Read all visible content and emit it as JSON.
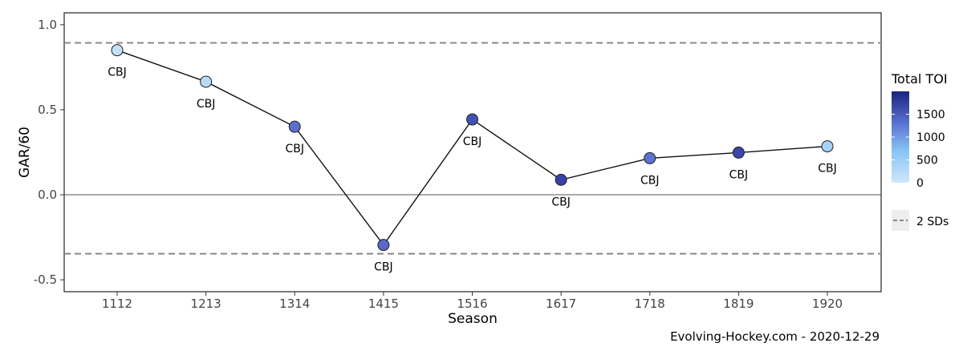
{
  "chart_data": {
    "type": "line",
    "xlabel": "Season",
    "ylabel": "GAR/60",
    "categories": [
      "1112",
      "1213",
      "1314",
      "1415",
      "1516",
      "1617",
      "1718",
      "1819",
      "1920"
    ],
    "ylim": [
      -0.57,
      1.07
    ],
    "yticks": [
      -0.5,
      0.0,
      0.5,
      1.0
    ],
    "ytick_labels": [
      "-0.5",
      "0.0",
      "0.5",
      "1.0"
    ],
    "zero_line": 0.0,
    "sd_lines": [
      0.893,
      -0.347
    ],
    "points": [
      {
        "season": "1112",
        "value": 0.85,
        "team": "CBJ",
        "toi": 150,
        "color": "#c6e0f7"
      },
      {
        "season": "1213",
        "value": 0.665,
        "team": "CBJ",
        "toi": 200,
        "color": "#b8dcf7"
      },
      {
        "season": "1314",
        "value": 0.4,
        "team": "CBJ",
        "toi": 1300,
        "color": "#5c6fcb"
      },
      {
        "season": "1415",
        "value": -0.295,
        "team": "CBJ",
        "toi": 1250,
        "color": "#5969c8"
      },
      {
        "season": "1516",
        "value": 0.443,
        "team": "CBJ",
        "toi": 1550,
        "color": "#4251b5"
      },
      {
        "season": "1617",
        "value": 0.088,
        "team": "CBJ",
        "toi": 1700,
        "color": "#3741a8"
      },
      {
        "season": "1718",
        "value": 0.215,
        "team": "CBJ",
        "toi": 1200,
        "color": "#5b74d2"
      },
      {
        "season": "1819",
        "value": 0.248,
        "team": "CBJ",
        "toi": 1650,
        "color": "#3b46ad"
      },
      {
        "season": "1920",
        "value": 0.285,
        "team": "CBJ",
        "toi": 400,
        "color": "#a6d2f6"
      }
    ],
    "legend": {
      "placement": "right",
      "colorbar_title": "Total TOI",
      "colorbar_ticks": [
        "1500",
        "1000",
        "500",
        "0"
      ],
      "colorbar_tick_values": [
        1500,
        1000,
        500,
        0
      ],
      "colorbar_range": [
        0,
        2000
      ],
      "colorbar_colors": [
        "#cfe6fb",
        "#87c4f5",
        "#5a73d0",
        "#1a237e"
      ],
      "line_label": "2 SDs"
    },
    "caption": "Evolving-Hockey.com - 2020-12-29",
    "grid": false
  }
}
